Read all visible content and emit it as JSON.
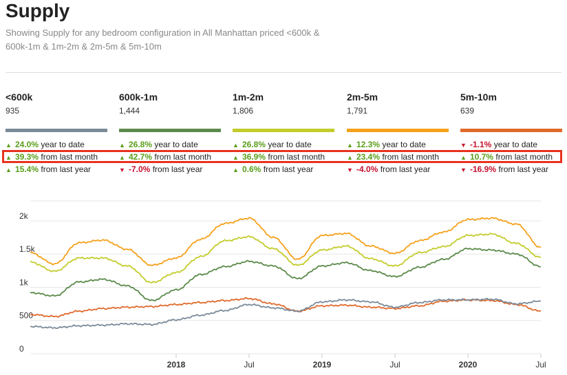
{
  "header": {
    "title": "Supply",
    "subtitle": "Showing Supply for any bedroom configuration in All Manhattan priced <600k & 600k-1m & 1m-2m & 2m-5m & 5m-10m"
  },
  "stat_suffixes": {
    "ytd": "year to date",
    "mom": "from last month",
    "yoy": "from last year"
  },
  "segments": [
    {
      "name": "<600k",
      "count": "935",
      "color": "#7a8a99",
      "ytd": {
        "value": "24.0%",
        "dir": "up"
      },
      "mom": {
        "value": "39.3%",
        "dir": "up"
      },
      "yoy": {
        "value": "15.4%",
        "dir": "up"
      }
    },
    {
      "name": "600k-1m",
      "count": "1,444",
      "color": "#5b8a4a",
      "ytd": {
        "value": "26.8%",
        "dir": "up"
      },
      "mom": {
        "value": "42.7%",
        "dir": "up"
      },
      "yoy": {
        "value": "-7.0%",
        "dir": "down"
      }
    },
    {
      "name": "1m-2m",
      "count": "1,806",
      "color": "#c2cc2a",
      "ytd": {
        "value": "26.8%",
        "dir": "up"
      },
      "mom": {
        "value": "36.9%",
        "dir": "up"
      },
      "yoy": {
        "value": "0.6%",
        "dir": "up"
      }
    },
    {
      "name": "2m-5m",
      "count": "1,791",
      "color": "#f5a01a",
      "ytd": {
        "value": "12.3%",
        "dir": "up"
      },
      "mom": {
        "value": "23.4%",
        "dir": "up"
      },
      "yoy": {
        "value": "-4.0%",
        "dir": "down"
      }
    },
    {
      "name": "5m-10m",
      "count": "639",
      "color": "#e0692a",
      "ytd": {
        "value": "-1.1%",
        "dir": "down"
      },
      "mom": {
        "value": "10.7%",
        "dir": "up"
      },
      "yoy": {
        "value": "-16.9%",
        "dir": "down"
      }
    }
  ],
  "chart_data": {
    "type": "line",
    "x_range": [
      "2017-01",
      "2020-07"
    ],
    "x_ticks": [
      {
        "label": "2018",
        "at": "2018-01",
        "bold": true
      },
      {
        "label": "Jul",
        "at": "2018-07",
        "bold": false
      },
      {
        "label": "2019",
        "at": "2019-01",
        "bold": true
      },
      {
        "label": "Jul",
        "at": "2019-07",
        "bold": false
      },
      {
        "label": "2020",
        "at": "2020-01",
        "bold": true
      },
      {
        "label": "Jul",
        "at": "2020-07",
        "bold": false
      }
    ],
    "ylim": [
      0,
      2300
    ],
    "y_ticks": [
      {
        "label": "0",
        "value": 0
      },
      {
        "label": "500",
        "value": 500
      },
      {
        "label": "1k",
        "value": 1000
      },
      {
        "label": "1.5k",
        "value": 1500
      },
      {
        "label": "2k",
        "value": 2000
      }
    ],
    "grid": "horizontal",
    "x": [
      "2017-01",
      "2017-03",
      "2017-05",
      "2017-07",
      "2017-09",
      "2017-11",
      "2018-01",
      "2018-03",
      "2018-05",
      "2018-07",
      "2018-09",
      "2018-11",
      "2019-01",
      "2019-03",
      "2019-05",
      "2019-07",
      "2019-09",
      "2019-11",
      "2020-01",
      "2020-03",
      "2020-05",
      "2020-07"
    ],
    "series": [
      {
        "color": "#f5a01a",
        "values": [
          1520,
          1350,
          1670,
          1710,
          1570,
          1330,
          1440,
          1720,
          1960,
          2040,
          1750,
          1420,
          1780,
          1810,
          1620,
          1510,
          1700,
          1830,
          2020,
          2040,
          1950,
          1600
        ]
      },
      {
        "color": "#c2cc2a",
        "values": [
          1380,
          1240,
          1440,
          1440,
          1320,
          1070,
          1220,
          1460,
          1700,
          1760,
          1580,
          1330,
          1560,
          1620,
          1430,
          1320,
          1520,
          1610,
          1780,
          1800,
          1660,
          1450
        ]
      },
      {
        "color": "#5b8a4a",
        "values": [
          920,
          870,
          1080,
          1120,
          1020,
          800,
          960,
          1190,
          1310,
          1390,
          1320,
          1130,
          1320,
          1370,
          1250,
          1160,
          1300,
          1420,
          1580,
          1560,
          1500,
          1310
        ]
      },
      {
        "color": "#e0692a",
        "values": [
          590,
          560,
          640,
          680,
          700,
          710,
          740,
          770,
          800,
          830,
          750,
          640,
          720,
          730,
          700,
          680,
          720,
          790,
          810,
          800,
          740,
          640
        ]
      },
      {
        "color": "#7a8a99",
        "values": [
          410,
          390,
          420,
          430,
          450,
          440,
          510,
          580,
          650,
          740,
          690,
          640,
          780,
          810,
          780,
          700,
          770,
          810,
          810,
          820,
          750,
          790
        ]
      }
    ]
  }
}
